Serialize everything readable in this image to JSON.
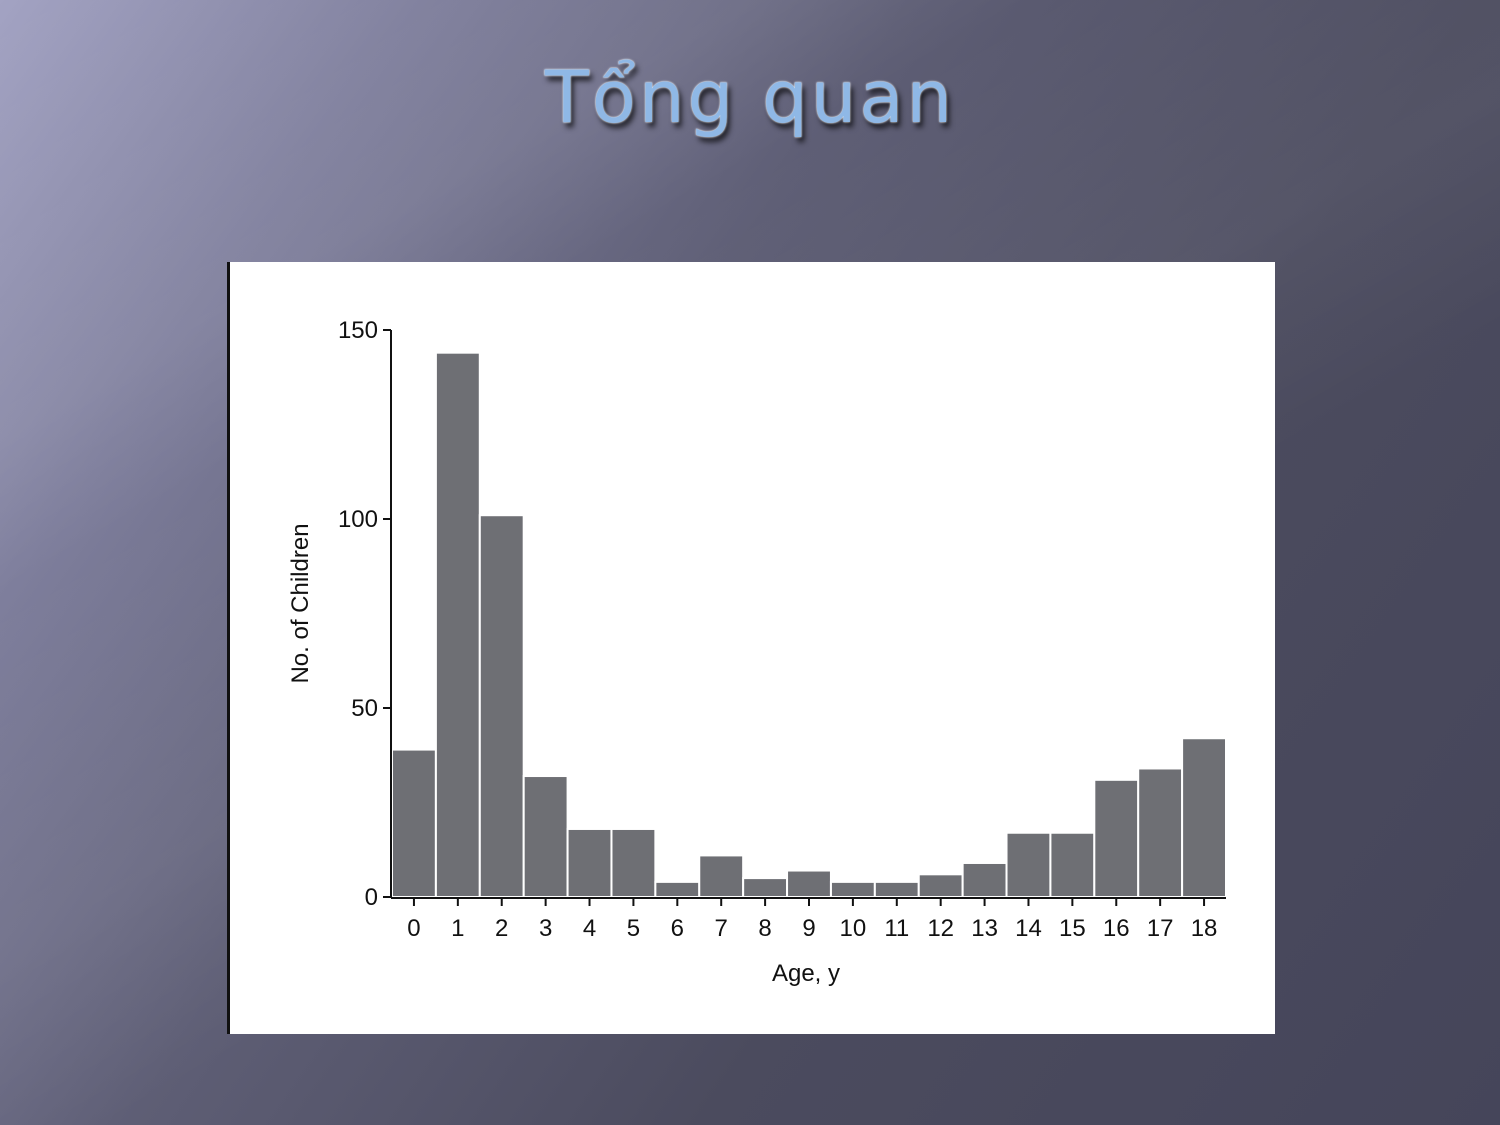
{
  "slide": {
    "title": "Tổng quan"
  },
  "chart_data": {
    "type": "bar",
    "categories": [
      "0",
      "1",
      "2",
      "3",
      "4",
      "5",
      "6",
      "7",
      "8",
      "9",
      "10",
      "11",
      "12",
      "13",
      "14",
      "15",
      "16",
      "17",
      "18"
    ],
    "values": [
      39,
      144,
      101,
      32,
      18,
      18,
      4,
      11,
      5,
      7,
      4,
      4,
      6,
      9,
      17,
      17,
      31,
      34,
      42
    ],
    "xlabel": "Age, y",
    "ylabel": "No. of Children",
    "ylim": [
      0,
      150
    ],
    "yticks": [
      0,
      50,
      100,
      150
    ],
    "grid": false,
    "legend": "none",
    "colors": {
      "bar_fill": "#6e6f74",
      "bar_stroke": "#ffffff",
      "axis": "#111111"
    }
  }
}
